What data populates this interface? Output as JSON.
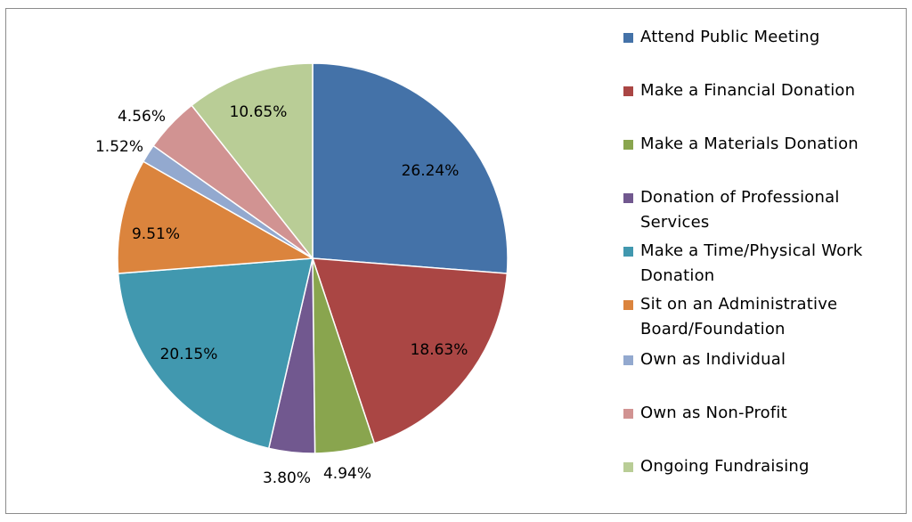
{
  "chart_data": {
    "type": "pie",
    "title": "",
    "start_angle_deg": 0,
    "direction": "clockwise",
    "slices": [
      {
        "label": "Attend Public Meeting",
        "value": 26.24,
        "data_label": "26.24%",
        "color": "#4472A8"
      },
      {
        "label": "Make a Financial Donation",
        "value": 18.63,
        "data_label": "18.63%",
        "color": "#AA4644"
      },
      {
        "label": "Make a Materials Donation",
        "value": 4.94,
        "data_label": "4.94%",
        "color": "#89A54E"
      },
      {
        "label": "Donation of Professional Services",
        "value": 3.8,
        "data_label": "3.80%",
        "color": "#71588F"
      },
      {
        "label": "Make a Time/Physical Work Donation",
        "value": 20.15,
        "data_label": "20.15%",
        "color": "#4198AF"
      },
      {
        "label": "Sit on an Administrative Board/Foundation",
        "value": 9.51,
        "data_label": "9.51%",
        "color": "#DB843D"
      },
      {
        "label": "Own as Individual",
        "value": 1.52,
        "data_label": "1.52%",
        "color": "#93A9CF"
      },
      {
        "label": "Own as Non-Profit",
        "value": 4.56,
        "data_label": "4.56%",
        "color": "#D19392"
      },
      {
        "label": "Ongoing Fundraising",
        "value": 10.65,
        "data_label": "10.65%",
        "color": "#B9CD96"
      }
    ],
    "legend": {
      "placement": "right",
      "entries": [
        {
          "lines": [
            "Attend Public Meeting"
          ]
        },
        {
          "lines": [
            "Make a Financial Donation"
          ]
        },
        {
          "lines": [
            "Make a Materials Donation"
          ]
        },
        {
          "lines": [
            "Donation of Professional",
            "Services"
          ]
        },
        {
          "lines": [
            "Make a Time/Physical Work",
            "Donation"
          ]
        },
        {
          "lines": [
            "Sit on an Administrative",
            "Board/Foundation"
          ]
        },
        {
          "lines": [
            "Own as Individual"
          ]
        },
        {
          "lines": [
            "Own as Non-Profit"
          ]
        },
        {
          "lines": [
            "Ongoing Fundraising"
          ]
        }
      ]
    }
  }
}
